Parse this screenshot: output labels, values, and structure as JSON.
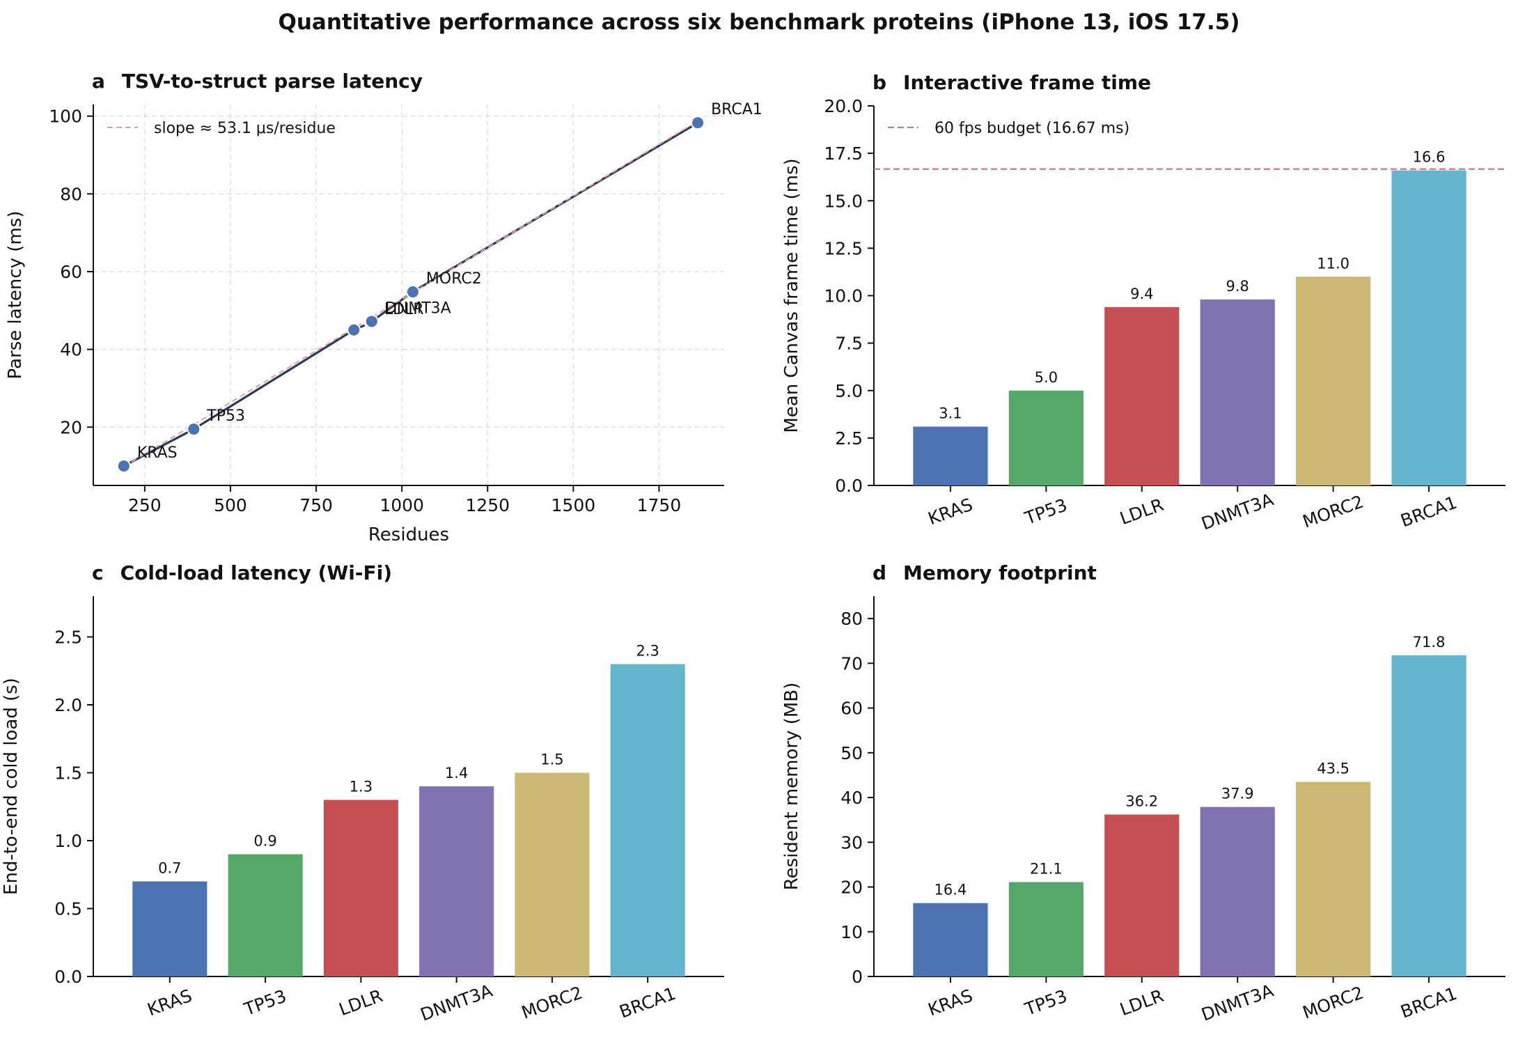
{
  "figure": {
    "title": "Quantitative performance across six benchmark proteins (iPhone 13, iOS 17.5)"
  },
  "chart_data": [
    {
      "panel": "a",
      "type": "scatter",
      "title": "TSV-to-struct parse latency",
      "xlabel": "Residues",
      "ylabel": "Parse latency (ms)",
      "xlim": [
        100,
        1940
      ],
      "ylim": [
        5,
        103
      ],
      "xticks": [
        250,
        500,
        750,
        1000,
        1250,
        1500,
        1750
      ],
      "yticks": [
        20,
        40,
        60,
        80,
        100
      ],
      "grid": true,
      "legend_position": "top-left",
      "fit_label": "slope ≈ 53.1 μs/residue",
      "fit_slope_ms_per_residue": 0.0531,
      "fit_intercept_ms": -0.2,
      "point_color": "#4c72b0",
      "line_color": "#2b3a55",
      "fit_color": "#e39ea5",
      "points": [
        {
          "label": "KRAS",
          "x": 189,
          "y": 10.0
        },
        {
          "label": "TP53",
          "x": 393,
          "y": 19.5
        },
        {
          "label": "",
          "x": 860,
          "y": 45.0
        },
        {
          "label": "LDLR",
          "x": 910,
          "y": 46.9
        },
        {
          "label": "DNMT3A",
          "x": 912,
          "y": 47.2
        },
        {
          "label": "MORC2",
          "x": 1032,
          "y": 54.8
        },
        {
          "label": "BRCA1",
          "x": 1863,
          "y": 98.3
        }
      ]
    },
    {
      "panel": "b",
      "type": "bar",
      "title": "Interactive frame time",
      "ylabel": "Mean Canvas frame time (ms)",
      "categories": [
        "KRAS",
        "TP53",
        "LDLR",
        "DNMT3A",
        "MORC2",
        "BRCA1"
      ],
      "values": [
        3.1,
        5.0,
        9.4,
        9.8,
        11.0,
        16.6
      ],
      "labels": [
        "3.1",
        "5.0",
        "9.4",
        "9.8",
        "11.0",
        "16.6"
      ],
      "ylim": [
        0,
        20
      ],
      "yticks": [
        "0.0",
        "2.5",
        "5.0",
        "7.5",
        "10.0",
        "12.5",
        "15.0",
        "17.5",
        "20.0"
      ],
      "reference_line": {
        "value": 16.67,
        "label": "60 fps budget (16.67 ms)",
        "color": "#d9727c"
      },
      "legend_position": "top-left"
    },
    {
      "panel": "c",
      "type": "bar",
      "title": "Cold-load latency (Wi-Fi)",
      "ylabel": "End-to-end cold load (s)",
      "categories": [
        "KRAS",
        "TP53",
        "LDLR",
        "DNMT3A",
        "MORC2",
        "BRCA1"
      ],
      "values": [
        0.7,
        0.9,
        1.3,
        1.4,
        1.5,
        2.3
      ],
      "labels": [
        "0.7",
        "0.9",
        "1.3",
        "1.4",
        "1.5",
        "2.3"
      ],
      "ylim": [
        0,
        2.8
      ],
      "yticks": [
        "0.0",
        "0.5",
        "1.0",
        "1.5",
        "2.0",
        "2.5"
      ]
    },
    {
      "panel": "d",
      "type": "bar",
      "title": "Memory footprint",
      "ylabel": "Resident memory (MB)",
      "categories": [
        "KRAS",
        "TP53",
        "LDLR",
        "DNMT3A",
        "MORC2",
        "BRCA1"
      ],
      "values": [
        16.4,
        21.1,
        36.2,
        37.9,
        43.5,
        71.8
      ],
      "labels": [
        "16.4",
        "21.1",
        "36.2",
        "37.9",
        "43.5",
        "71.8"
      ],
      "ylim": [
        0,
        85
      ],
      "yticks": [
        "0",
        "10",
        "20",
        "30",
        "40",
        "50",
        "60",
        "70",
        "80"
      ]
    }
  ],
  "bar_colors": [
    "#4c72b0",
    "#55a868",
    "#c44e52",
    "#8172b2",
    "#ccb974",
    "#64b5cd"
  ]
}
